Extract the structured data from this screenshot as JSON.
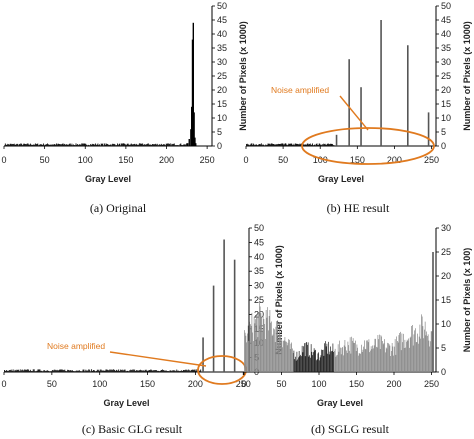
{
  "chart_data": [
    {
      "type": "bar",
      "caption": "(a) Original",
      "xlabel": "Gray Level",
      "ylabel": "Number of Pixels (x 1000)",
      "xlim": [
        0,
        256
      ],
      "ylim": [
        0,
        50
      ],
      "xticks": [
        0,
        50,
        100,
        150,
        200,
        250
      ],
      "yticks": [
        0,
        5,
        10,
        15,
        20,
        25,
        30,
        35,
        40,
        45,
        50
      ],
      "annotation": "",
      "noise": {
        "from": 0,
        "to": 225,
        "level": 0.6
      },
      "peaks": [
        {
          "x": 226,
          "y": 1.0
        },
        {
          "x": 228,
          "y": 2.5
        },
        {
          "x": 230,
          "y": 6.0
        },
        {
          "x": 231,
          "y": 14.0
        },
        {
          "x": 232,
          "y": 38.0
        },
        {
          "x": 233,
          "y": 44.0
        },
        {
          "x": 234,
          "y": 12.0
        },
        {
          "x": 235,
          "y": 3.0
        },
        {
          "x": 236,
          "y": 1.0
        }
      ]
    },
    {
      "type": "bar",
      "caption": "(b) HE result",
      "xlabel": "Gray Level",
      "ylabel": "Number of Pixels (x 1000)",
      "xlim": [
        0,
        256
      ],
      "ylim": [
        0,
        50
      ],
      "xticks": [
        0,
        50,
        100,
        150,
        200,
        250
      ],
      "yticks": [
        0,
        5,
        10,
        15,
        20,
        25,
        30,
        35,
        40,
        45,
        50
      ],
      "annotation": "Noise amplified",
      "noise": {
        "from": 0,
        "to": 118,
        "level": 0.6
      },
      "peaks": [
        {
          "x": 122,
          "y": 4.0
        },
        {
          "x": 139,
          "y": 31.0
        },
        {
          "x": 155,
          "y": 21.0
        },
        {
          "x": 182,
          "y": 45.0
        },
        {
          "x": 218,
          "y": 36.0
        },
        {
          "x": 246,
          "y": 12.0
        }
      ]
    },
    {
      "type": "bar",
      "caption": "(c) Basic GLG result",
      "xlabel": "Gray Level",
      "ylabel": "Number of Pixels (x 1000)",
      "xlim": [
        0,
        256
      ],
      "ylim": [
        0,
        50
      ],
      "xticks": [
        0,
        50,
        100,
        150,
        200,
        250
      ],
      "yticks": [
        0,
        5,
        10,
        15,
        20,
        25,
        30,
        35,
        40,
        45,
        50
      ],
      "annotation": "Noise amplified",
      "noise": {
        "from": 0,
        "to": 205,
        "level": 0.6
      },
      "peaks": [
        {
          "x": 208,
          "y": 12.0
        },
        {
          "x": 219,
          "y": 30.0
        },
        {
          "x": 230,
          "y": 46.0
        },
        {
          "x": 241,
          "y": 39.0
        }
      ]
    },
    {
      "type": "bar",
      "caption": "(d) SGLG result",
      "xlabel": "Gray Level",
      "ylabel": "Number of Pixels (x 100)",
      "xlim": [
        0,
        256
      ],
      "ylim": [
        0,
        30
      ],
      "xticks": [
        0,
        50,
        100,
        150,
        200,
        250
      ],
      "yticks": [
        0,
        5,
        10,
        15,
        20,
        25,
        30
      ],
      "annotation": "",
      "envelope": [
        {
          "x": 0,
          "y": 8
        },
        {
          "x": 10,
          "y": 11
        },
        {
          "x": 20,
          "y": 13
        },
        {
          "x": 30,
          "y": 12
        },
        {
          "x": 40,
          "y": 11
        },
        {
          "x": 50,
          "y": 9
        },
        {
          "x": 60,
          "y": 6
        },
        {
          "x": 70,
          "y": 4
        },
        {
          "x": 80,
          "y": 6
        },
        {
          "x": 90,
          "y": 5
        },
        {
          "x": 100,
          "y": 4
        },
        {
          "x": 110,
          "y": 6
        },
        {
          "x": 120,
          "y": 5
        },
        {
          "x": 130,
          "y": 6
        },
        {
          "x": 140,
          "y": 7
        },
        {
          "x": 150,
          "y": 6
        },
        {
          "x": 160,
          "y": 7
        },
        {
          "x": 170,
          "y": 6
        },
        {
          "x": 180,
          "y": 7
        },
        {
          "x": 190,
          "y": 6
        },
        {
          "x": 200,
          "y": 6
        },
        {
          "x": 210,
          "y": 8
        },
        {
          "x": 220,
          "y": 9
        },
        {
          "x": 230,
          "y": 10
        },
        {
          "x": 240,
          "y": 11
        },
        {
          "x": 250,
          "y": 9
        }
      ],
      "peaks": [
        {
          "x": 252,
          "y": 25.0
        }
      ]
    }
  ]
}
